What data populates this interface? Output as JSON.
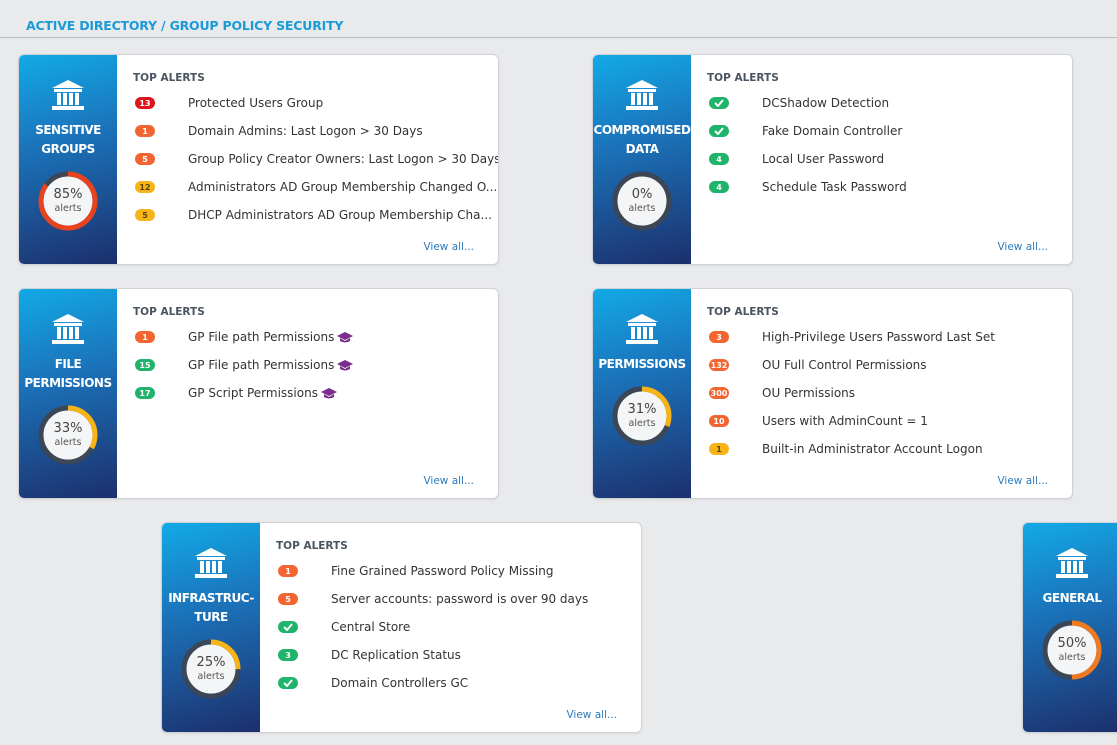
{
  "header": {
    "title": "ACTIVE DIRECTORY / GROUP POLICY SECURITY"
  },
  "cards": [
    {
      "name_lines": [
        "SENSITIVE",
        "GROUPS"
      ],
      "gauge": {
        "value": 85,
        "label": "85%",
        "color": "#e8431f"
      },
      "gauge_caption": "alerts",
      "section_title": "TOP ALERTS",
      "link": "View all...",
      "alerts": [
        {
          "count": 13,
          "color": "#e0141b",
          "text": "Protected Users Group"
        },
        {
          "count": 1,
          "color": "#f26531",
          "text": "Domain Admins: Last Logon > 30 Days"
        },
        {
          "count": 5,
          "color": "#f26531",
          "text": "Group Policy Creator Owners: Last Logon > 30 Days"
        },
        {
          "count": 12,
          "color": "#f6b418",
          "text": "Administrators AD Group Membership Changed O..."
        },
        {
          "count": 5,
          "color": "#f6b418",
          "text": "DHCP Administrators AD Group Membership Cha..."
        }
      ]
    },
    {
      "name_lines": [
        "COMPROMISED",
        "DATA"
      ],
      "gauge": {
        "value": 0,
        "label": "0%",
        "color": "#f6b418"
      },
      "gauge_caption": "alerts",
      "section_title": "TOP ALERTS",
      "link": "View all...",
      "alerts": [
        {
          "color": "#1fb46a",
          "text": "DCShadow Detection"
        },
        {
          "color": "#1fb46a",
          "text": "Fake Domain Controller"
        },
        {
          "count": 4,
          "color": "#1fb46a",
          "text": "Local User Password"
        },
        {
          "count": 4,
          "color": "#1fb46a",
          "text": "Schedule Task Password"
        }
      ]
    },
    {
      "name_lines": [
        "FILE",
        "PERMISSIONS"
      ],
      "gauge": {
        "value": 33,
        "label": "33%",
        "color": "#f6b418"
      },
      "gauge_caption": "alerts",
      "section_title": "TOP ALERTS",
      "link": "View all...",
      "alerts": [
        {
          "count": 1,
          "color": "#f26531",
          "text": "GP File path Permissions",
          "training": true
        },
        {
          "count": 15,
          "color": "#1fb46a",
          "text": "GP File path Permissions",
          "training": true
        },
        {
          "count": 17,
          "color": "#1fb46a",
          "text": "GP Script Permissions",
          "training": true
        }
      ]
    },
    {
      "name_lines": [
        "PERMISSIONS"
      ],
      "gauge": {
        "value": 31,
        "label": "31%",
        "color": "#f6b418"
      },
      "gauge_caption": "alerts",
      "section_title": "TOP ALERTS",
      "link": "View all...",
      "alerts": [
        {
          "count": 3,
          "color": "#f26531",
          "text": "High-Privilege Users Password Last Set"
        },
        {
          "count": 132,
          "color": "#f26531",
          "text": "OU Full Control Permissions"
        },
        {
          "count": 300,
          "color": "#f26531",
          "text": "OU Permissions"
        },
        {
          "count": 10,
          "color": "#f26531",
          "text": "Users with AdminCount = 1"
        },
        {
          "count": 1,
          "color": "#f6b418",
          "text": "Built-in Administrator Account Logon"
        }
      ]
    },
    {
      "name_lines": [
        "INFRASTRUC-",
        "TURE"
      ],
      "gauge": {
        "value": 25,
        "label": "25%",
        "color": "#f6b418"
      },
      "gauge_caption": "alerts",
      "section_title": "TOP ALERTS",
      "link": "View all...",
      "alerts": [
        {
          "count": 1,
          "color": "#f26531",
          "text": "Fine Grained Password Policy Missing"
        },
        {
          "count": 5,
          "color": "#f26531",
          "text": "Server accounts: password is over 90 days"
        },
        {
          "color": "#1fb46a",
          "text": "Central Store"
        },
        {
          "count": 3,
          "color": "#1fb46a",
          "text": "DC Replication Status"
        },
        {
          "color": "#1fb46a",
          "text": "Domain Controllers GC"
        }
      ]
    },
    {
      "name_lines": [
        "GENERAL"
      ],
      "gauge": {
        "value": 50,
        "label": "50%",
        "color": "#f07a21"
      },
      "gauge_caption": "alerts"
    }
  ]
}
